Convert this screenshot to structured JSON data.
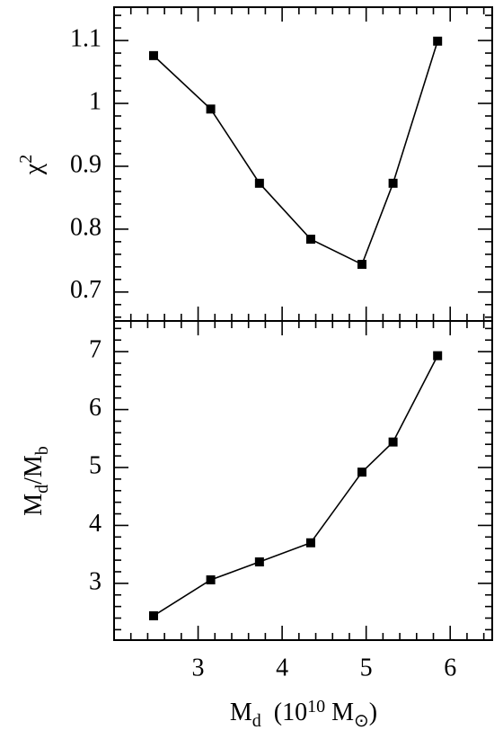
{
  "chart_data": [
    {
      "type": "line",
      "ylabel": [
        "χ",
        "2"
      ],
      "x": [
        2.47,
        3.15,
        3.73,
        4.34,
        4.95,
        5.32,
        5.85
      ],
      "values": [
        1.076,
        0.991,
        0.873,
        0.784,
        0.744,
        0.873,
        1.099
      ],
      "color": "#000000",
      "xlim": [
        2,
        6.5
      ],
      "xticks": [
        3,
        4,
        5,
        6
      ],
      "xminorticks": [
        2.2,
        2.4,
        2.6,
        2.8,
        3.2,
        3.4,
        3.6,
        3.8,
        4.2,
        4.4,
        4.6,
        4.8,
        5.2,
        5.4,
        5.6,
        5.8,
        6.2,
        6.4
      ],
      "show_xtick_labels": false,
      "ylim": [
        0.654,
        1.153
      ],
      "yticks": [
        0.7,
        0.8,
        0.9,
        1,
        1.1
      ],
      "yminorticks": [
        0.66,
        0.68,
        0.72,
        0.74,
        0.76,
        0.78,
        0.82,
        0.84,
        0.86,
        0.88,
        0.92,
        0.94,
        0.96,
        0.98,
        1.02,
        1.04,
        1.06,
        1.08,
        1.12,
        1.14
      ]
    },
    {
      "type": "line",
      "ylabel": [
        "M",
        "d",
        "/M",
        "b"
      ],
      "xlabel": [
        "M",
        "d",
        "  (10",
        "10",
        " M",
        "⊙",
        ")"
      ],
      "x": [
        2.47,
        3.15,
        3.73,
        4.34,
        4.95,
        5.32,
        5.85
      ],
      "values": [
        2.44,
        3.06,
        3.37,
        3.7,
        4.92,
        5.44,
        6.93
      ],
      "color": "#000000",
      "xlim": [
        2,
        6.5
      ],
      "xticks": [
        3,
        4,
        5,
        6
      ],
      "xminorticks": [
        2.2,
        2.4,
        2.6,
        2.8,
        3.2,
        3.4,
        3.6,
        3.8,
        4.2,
        4.4,
        4.6,
        4.8,
        5.2,
        5.4,
        5.6,
        5.8,
        6.2,
        6.4
      ],
      "show_xtick_labels": true,
      "ylim": [
        2.02,
        7.53
      ],
      "yticks": [
        3,
        4,
        5,
        6,
        7
      ],
      "yminorticks": [
        2.2,
        2.4,
        2.6,
        2.8,
        3.2,
        3.4,
        3.6,
        3.8,
        4.2,
        4.4,
        4.6,
        4.8,
        5.2,
        5.4,
        5.6,
        5.8,
        6.2,
        6.4,
        6.6,
        6.8,
        7.2,
        7.4
      ]
    }
  ]
}
